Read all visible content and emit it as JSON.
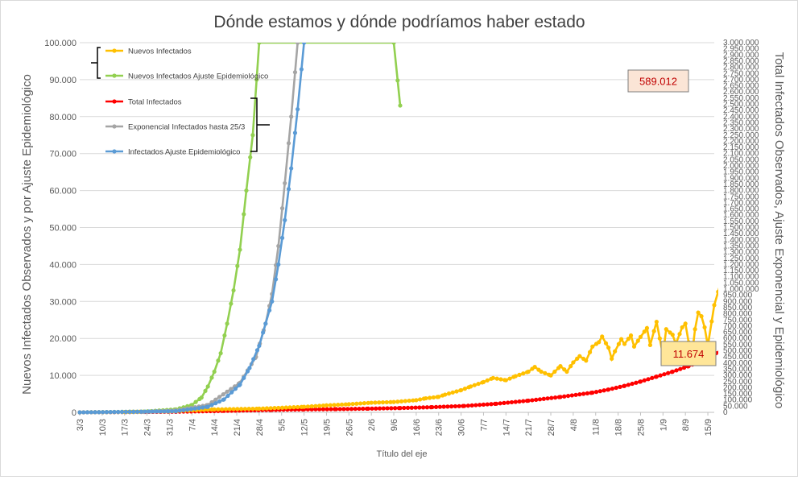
{
  "chart_data": {
    "type": "line",
    "title": "Dónde estamos y dónde podríamos haber estado",
    "xlabel": "Título del eje",
    "ylabel": "Nuevos Infectados Observados y por Ajuste Epidemiológico",
    "y2label": "Total Infectados Observados, Ajuste Exponencial y Epidemiológico",
    "ylim": [
      0,
      100000
    ],
    "y2lim": [
      0,
      3000000
    ],
    "x_start_date": "3/3",
    "x_num_days": 198,
    "grid": true,
    "legend_position": "top-left",
    "categories": [
      "3/3",
      "10/3",
      "17/3",
      "24/3",
      "31/3",
      "7/4",
      "14/4",
      "21/4",
      "28/4",
      "5/5",
      "12/5",
      "19/5",
      "26/5",
      "2/6",
      "9/6",
      "16/6",
      "23/6",
      "30/6",
      "7/7",
      "14/7",
      "21/7",
      "28/7",
      "4/8",
      "11/8",
      "18/8",
      "25/8",
      "1/9",
      "8/9",
      "15/9"
    ],
    "yticks": [
      "0",
      "10.000",
      "20.000",
      "30.000",
      "40.000",
      "50.000",
      "60.000",
      "70.000",
      "80.000",
      "90.000",
      "100.000"
    ],
    "y2ticks": [
      "0",
      "50.000",
      "100.000",
      "150.000",
      "200.000",
      "250.000",
      "300.000",
      "350.000",
      "400.000",
      "450.000",
      "500.000",
      "550.000",
      "600.000",
      "650.000",
      "700.000",
      "750.000",
      "800.000",
      "850.000",
      "900.000",
      "950.000",
      "1.000.000",
      "1.050.000",
      "1.100.000",
      "1.150.000",
      "1.200.000",
      "1.250.000",
      "1.300.000",
      "1.350.000",
      "1.400.000",
      "1.450.000",
      "1.500.000",
      "1.550.000",
      "1.600.000",
      "1.650.000",
      "1.700.000",
      "1.750.000",
      "1.800.000",
      "1.850.000",
      "1.900.000",
      "1.950.000",
      "2.000.000",
      "2.050.000",
      "2.100.000",
      "2.150.000",
      "2.200.000",
      "2.250.000",
      "2.300.000",
      "2.350.000",
      "2.400.000",
      "2.450.000",
      "2.500.000",
      "2.550.000",
      "2.600.000",
      "2.650.000",
      "2.700.000",
      "2.750.000",
      "2.800.000",
      "2.850.000",
      "2.900.000",
      "2.950.000",
      "3.000.000"
    ],
    "series": [
      {
        "name": "Nuevos Infectados",
        "color": "#ffc000",
        "axis": "left",
        "points": [
          [
            0,
            0
          ],
          [
            14,
            100
          ],
          [
            28,
            300
          ],
          [
            42,
            800
          ],
          [
            56,
            1000
          ],
          [
            70,
            1500
          ],
          [
            77,
            1900
          ],
          [
            84,
            2200
          ],
          [
            91,
            2600
          ],
          [
            98,
            2800
          ],
          [
            105,
            3300
          ],
          [
            108,
            3800
          ],
          [
            112,
            4200
          ],
          [
            114,
            4800
          ],
          [
            119,
            6000
          ],
          [
            122,
            7000
          ],
          [
            126,
            8200
          ],
          [
            129,
            9300
          ],
          [
            133,
            8700
          ],
          [
            136,
            9800
          ],
          [
            140,
            11000
          ],
          [
            142,
            12300
          ],
          [
            144,
            11000
          ],
          [
            147,
            10000
          ],
          [
            150,
            12500
          ],
          [
            152,
            11000
          ],
          [
            154,
            13500
          ],
          [
            156,
            15200
          ],
          [
            158,
            14000
          ],
          [
            160,
            17800
          ],
          [
            162,
            19000
          ],
          [
            163,
            20500
          ],
          [
            165,
            17500
          ],
          [
            166,
            14500
          ],
          [
            167,
            16500
          ],
          [
            169,
            19800
          ],
          [
            170,
            18500
          ],
          [
            172,
            20800
          ],
          [
            173,
            17800
          ],
          [
            175,
            20400
          ],
          [
            177,
            22800
          ],
          [
            178,
            18200
          ],
          [
            180,
            24500
          ],
          [
            181,
            20000
          ],
          [
            182,
            15500
          ],
          [
            183,
            22500
          ],
          [
            185,
            21000
          ],
          [
            186,
            18500
          ],
          [
            188,
            23000
          ],
          [
            189,
            24000
          ],
          [
            190,
            19000
          ],
          [
            191,
            15000
          ],
          [
            192,
            22500
          ],
          [
            193,
            27000
          ],
          [
            194,
            26000
          ],
          [
            195,
            23000
          ],
          [
            196,
            18000
          ],
          [
            198,
            29000
          ],
          [
            200,
            35000
          ],
          [
            201,
            33000
          ],
          [
            202,
            38500
          ],
          [
            203,
            30000
          ],
          [
            204,
            24000
          ],
          [
            205,
            35000
          ],
          [
            206,
            36500
          ],
          [
            207,
            39500
          ],
          [
            208,
            27000
          ],
          [
            209,
            34000
          ],
          [
            210,
            39000
          ],
          [
            211,
            40500
          ],
          [
            212,
            38000
          ],
          [
            213,
            23500
          ],
          [
            214,
            31000
          ],
          [
            215,
            37000
          ],
          [
            216,
            40000
          ],
          [
            217,
            39000
          ],
          [
            218,
            29500
          ],
          [
            219,
            33000
          ],
          [
            220,
            39500
          ],
          [
            221,
            39000
          ]
        ]
      },
      {
        "name": "Nuevos Infectados Ajuste Epidemiológico",
        "color": "#92d050",
        "axis": "left",
        "points": [
          [
            0,
            0
          ],
          [
            20,
            200
          ],
          [
            30,
            800
          ],
          [
            35,
            2000
          ],
          [
            38,
            4000
          ],
          [
            40,
            7000
          ],
          [
            42,
            11000
          ],
          [
            44,
            16000
          ],
          [
            46,
            24000
          ],
          [
            48,
            33000
          ],
          [
            50,
            44000
          ],
          [
            52,
            60000
          ],
          [
            54,
            75000
          ],
          [
            56,
            100000
          ],
          [
            98,
            100000
          ],
          [
            100,
            83000
          ]
        ]
      },
      {
        "name": "Total Infectados",
        "color": "#ff0000",
        "axis": "right",
        "points": [
          [
            0,
            0
          ],
          [
            30,
            5000
          ],
          [
            45,
            12000
          ],
          [
            60,
            20000
          ],
          [
            70,
            24000
          ],
          [
            80,
            26000
          ],
          [
            90,
            30000
          ],
          [
            100,
            35000
          ],
          [
            110,
            42000
          ],
          [
            120,
            52000
          ],
          [
            130,
            70000
          ],
          [
            140,
            95000
          ],
          [
            150,
            125000
          ],
          [
            160,
            160000
          ],
          [
            165,
            185000
          ],
          [
            170,
            215000
          ],
          [
            175,
            250000
          ],
          [
            180,
            290000
          ],
          [
            185,
            330000
          ],
          [
            190,
            375000
          ],
          [
            195,
            430000
          ],
          [
            200,
            500000
          ],
          [
            205,
            570000
          ],
          [
            210,
            640000
          ],
          [
            215,
            700000
          ],
          [
            221,
            760000
          ]
        ]
      },
      {
        "name": "Exponencial Infectados hasta 25/3",
        "color": "#a5a5a5",
        "axis": "left",
        "points": [
          [
            0,
            0
          ],
          [
            20,
            100
          ],
          [
            30,
            500
          ],
          [
            40,
            2000
          ],
          [
            50,
            8000
          ],
          [
            55,
            15000
          ],
          [
            58,
            24000
          ],
          [
            60,
            32000
          ],
          [
            62,
            45000
          ],
          [
            64,
            62000
          ],
          [
            66,
            80000
          ],
          [
            68,
            100000
          ]
        ]
      },
      {
        "name": "Infectados Ajuste Epidemiológico",
        "color": "#5b9bd5",
        "axis": "left",
        "points": [
          [
            0,
            0
          ],
          [
            30,
            300
          ],
          [
            40,
            1500
          ],
          [
            45,
            3500
          ],
          [
            50,
            7500
          ],
          [
            53,
            12000
          ],
          [
            56,
            18000
          ],
          [
            58,
            24000
          ],
          [
            60,
            30000
          ],
          [
            62,
            40000
          ],
          [
            64,
            52000
          ],
          [
            66,
            66000
          ],
          [
            68,
            82000
          ],
          [
            70,
            100000
          ]
        ]
      }
    ],
    "annotations": [
      {
        "text": "589.012",
        "background": "#fbe5d6",
        "color": "#c00000"
      },
      {
        "text": "11.674",
        "background": "#ffe699",
        "color": "#c00000"
      }
    ]
  }
}
